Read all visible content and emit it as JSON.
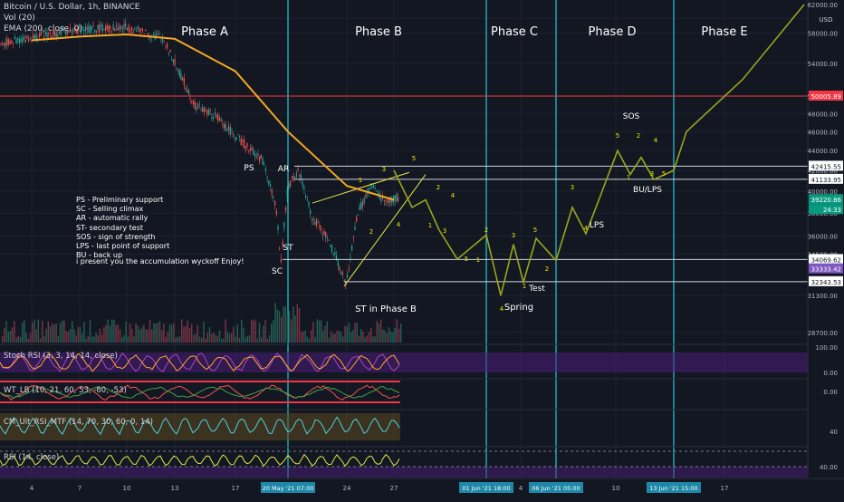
{
  "header": {
    "symbol_title": "Bitcoin / U.S. Dollar, 1h, BINANCE",
    "vol_label": "Vol (20)",
    "ema_label": "EMA (200, close, 0)",
    "currency": "USD"
  },
  "phases": [
    {
      "label": "Phase A",
      "x": "14"
    },
    {
      "label": "Phase B",
      "x": "24"
    },
    {
      "label": "Phase C",
      "x": "01 Jun"
    },
    {
      "label": "Phase D",
      "x": "08 Jun"
    },
    {
      "label": "Phase E",
      "x": "15 Jun"
    }
  ],
  "legend_lines": [
    "PS - Preliminary support",
    "SC - Selling climax",
    "AR - automatic rally",
    "ST- secondary test",
    "SOS - sign of strength",
    "LPS - last point of support",
    "BU - back up"
  ],
  "note": "i present you the accumulation wyckoff  Enjoy!",
  "wyckoff_labels": [
    "PS",
    "AR",
    "ST",
    "SC",
    "ST in Phase B",
    "Spring",
    "Test",
    "LPS",
    "SOS",
    "BU/LPS"
  ],
  "wave_numbers": [
    "1",
    "2",
    "3",
    "4",
    "5",
    "1",
    "2",
    "3",
    "4",
    "5",
    "1",
    "2",
    "3",
    "4",
    "5",
    "1",
    "2",
    "3",
    "4",
    "5",
    "1",
    "2",
    "3",
    "4",
    "5"
  ],
  "price_axis_ticks": [
    "62000.00",
    "58000.00",
    "54000.00",
    "50000.00",
    "48000.00",
    "46000.00",
    "44000.00",
    "42000.00",
    "40000.00",
    "38000.00",
    "36000.00",
    "34500.00",
    "31300.00",
    "28700.00"
  ],
  "price_badges": [
    {
      "value": "50005.89",
      "color": "#f23645"
    },
    {
      "value": "42415.55",
      "color": "#ffffff"
    },
    {
      "value": "41133.95",
      "color": "#ffffff"
    },
    {
      "value": "39220.86",
      "color": "#089981"
    },
    {
      "value": "24:33",
      "color": "#089981"
    },
    {
      "value": "34069.62",
      "color": "#ffffff"
    },
    {
      "value": "33333.42",
      "color": "#7e57c2"
    },
    {
      "value": "32343.53",
      "color": "#ffffff"
    }
  ],
  "date_ticks": [
    "4",
    "7",
    "10",
    "13",
    "17",
    "24",
    "27",
    "4",
    "10",
    "17"
  ],
  "date_badges": [
    "20 May '21  07:00",
    "01 Jun '21  18:00",
    "06 Jun '21  05:00",
    "13 Jun '21  15:00"
  ],
  "panes": [
    {
      "label": "Stoch RSI (3, 3, 14, 14, close)",
      "ticks": [
        "100.00",
        "0.00"
      ]
    },
    {
      "label": "WT_LB (10, 21, 60, 53, -60, -53)",
      "ticks": [
        "0.00"
      ]
    },
    {
      "label": "CM_Ult_RSI_MTF (14, 70, 30, 60, 0, 14)",
      "ticks": [
        "40"
      ]
    },
    {
      "label": "RSI (14, close)",
      "ticks": [
        "40.00"
      ]
    }
  ],
  "colors": {
    "background": "#131722",
    "ema": "#f5a623",
    "projection": "#9aa51c",
    "phase_lines": "#26c6da",
    "resistance": "#f23645",
    "pane_fill": "#4a1e7a",
    "wave_numbers": "#e6e600"
  },
  "chart_data": {
    "type": "line",
    "title": "Bitcoin / U.S. Dollar, 1h, BINANCE",
    "xlabel": "",
    "ylabel": "USD",
    "ylim": [
      28700,
      62000
    ],
    "y_scale": "log",
    "ema_series": {
      "name": "EMA (200, close, 0)",
      "x": [
        "4",
        "7",
        "10",
        "13",
        "17",
        "20 May",
        "24",
        "27"
      ],
      "y": [
        57000,
        57500,
        57800,
        57200,
        53000,
        46000,
        40500,
        39200
      ]
    },
    "projection": {
      "x": [
        "27",
        "28",
        "29",
        "30",
        "31",
        "01 Jun",
        "02 Jun",
        "03 Jun",
        "04 Jun",
        "05 Jun",
        "06 Jun",
        "07 Jun",
        "08 Jun",
        "09 Jun",
        "10 Jun",
        "11 Jun",
        "12 Jun",
        "13 Jun",
        "14 Jun",
        "16 Jun",
        "18 Jun"
      ],
      "y": [
        42000,
        38500,
        39200,
        36500,
        34100,
        36100,
        31300,
        35300,
        32300,
        35800,
        34000,
        38500,
        36200,
        44000,
        41600,
        43300,
        41100,
        42000,
        46000,
        52000,
        62000
      ]
    },
    "levels": [
      50005.89,
      42415.55,
      41133.95,
      34069.62,
      32343.53
    ]
  }
}
